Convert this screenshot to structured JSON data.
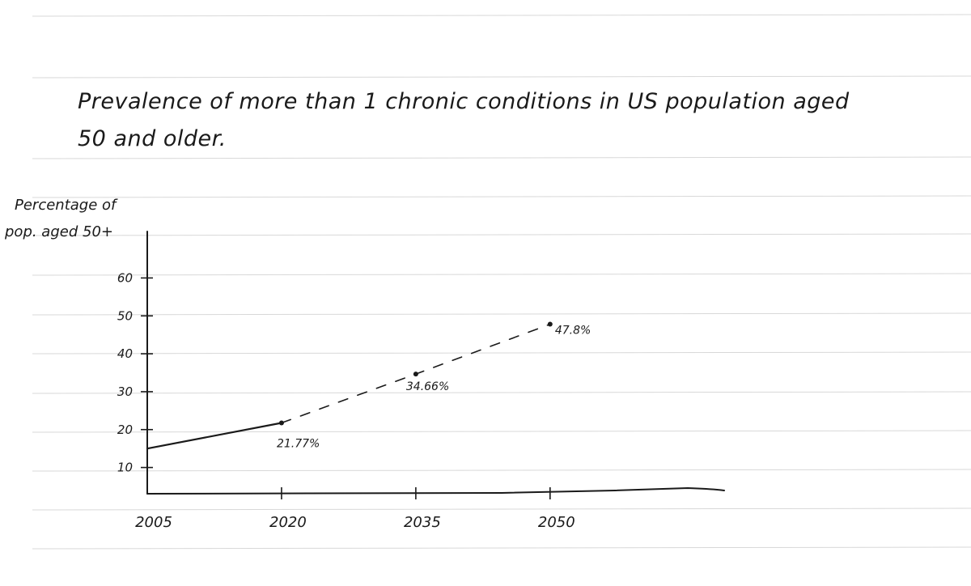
{
  "title_line1": "Prevalence of more than 1 chronic conditions in US population aged",
  "title_line2": "50 and older.",
  "ylabel_line1": "Percentage of",
  "ylabel_line2": "pop. aged 50+",
  "colors": {
    "ink": "#1a1a1a",
    "ruled_line": "#d8d8d8",
    "paper": "#ffffff"
  },
  "chart_data": {
    "type": "line",
    "title": "Prevalence of more than 1 chronic conditions in US population aged 50 and older.",
    "xlabel": "",
    "ylabel": "Percentage of pop. aged 50+",
    "x_ticks": [
      "2005",
      "2020",
      "2035",
      "2050"
    ],
    "y_ticks": [
      10,
      20,
      30,
      40,
      50,
      60
    ],
    "xlim": [
      2005,
      2069
    ],
    "ylim": [
      5,
      65
    ],
    "grid": false,
    "series": [
      {
        "style": "solid",
        "x": [
          2005,
          2020
        ],
        "y": [
          15,
          21.77
        ]
      },
      {
        "style": "dashed",
        "x": [
          2020,
          2035,
          2050
        ],
        "y": [
          21.77,
          34.66,
          47.8
        ]
      }
    ],
    "points": [
      {
        "x": 2020,
        "y": 21.77,
        "label": "21.77%"
      },
      {
        "x": 2035,
        "y": 34.66,
        "label": "34.66%"
      },
      {
        "x": 2050,
        "y": 47.8,
        "label": "47.8%"
      }
    ]
  }
}
